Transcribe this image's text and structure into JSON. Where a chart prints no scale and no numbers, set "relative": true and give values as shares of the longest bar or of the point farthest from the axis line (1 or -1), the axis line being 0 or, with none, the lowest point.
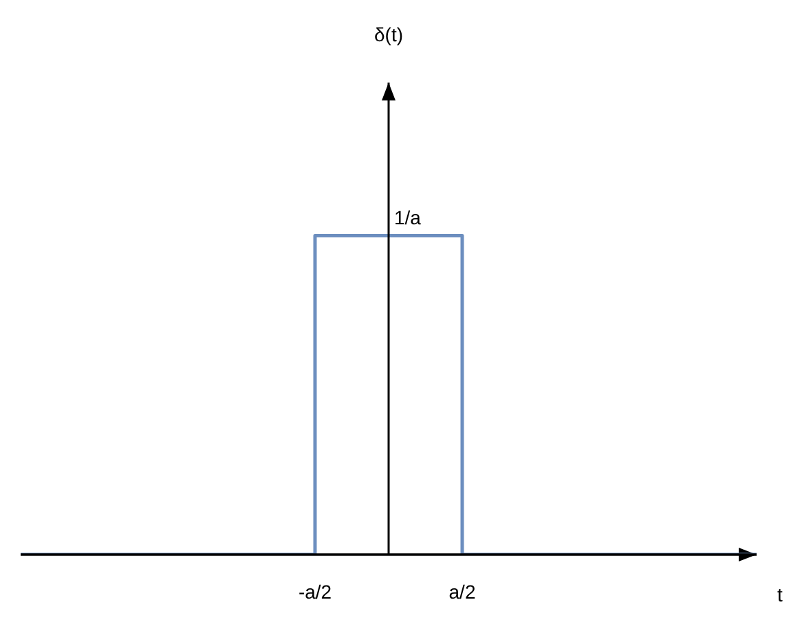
{
  "chart_data": {
    "type": "step",
    "relative": true,
    "xlabel": "t",
    "categories": [
      null,
      null,
      "-a/2",
      "a/2",
      null,
      null
    ],
    "series": [
      {
        "color": "#6c8ebf",
        "values": [
          0,
          0,
          1,
          0,
          0,
          0
        ]
      }
    ],
    "annotations": [
      "δ(t)",
      {
        "text": "1/a",
        "y": 1
      }
    ],
    "grid": false,
    "marker": "none",
    "line_style": "solid"
  }
}
